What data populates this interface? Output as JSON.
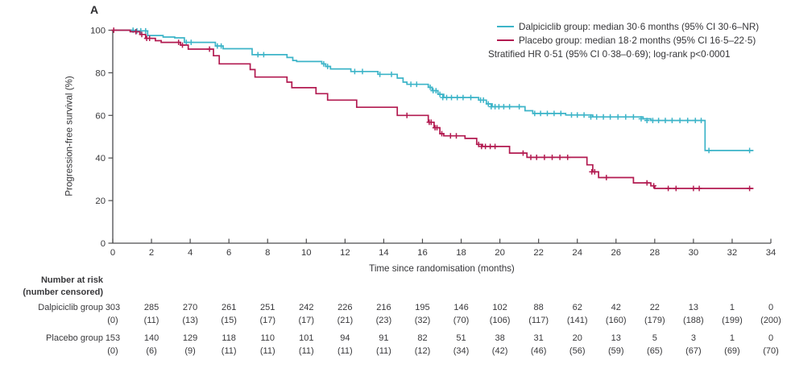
{
  "figure": {
    "panel_label": "A"
  },
  "chart_data": {
    "type": "line",
    "variant": "kaplan_meier_step",
    "xlabel": "Time since randomisation (months)",
    "ylabel": "Progression-free survival (%)",
    "xlim": [
      0,
      34
    ],
    "ylim": [
      0,
      100
    ],
    "x_ticks": [
      0,
      2,
      4,
      6,
      8,
      10,
      12,
      14,
      16,
      18,
      20,
      22,
      24,
      26,
      28,
      30,
      32,
      34
    ],
    "y_ticks": [
      0,
      20,
      40,
      60,
      80,
      100
    ],
    "grid": false,
    "legend_position": "top-right",
    "annotation": "Stratified HR 0·51 (95% CI 0·38–0·69); log-rank p<0·0001",
    "series": [
      {
        "name": "Dalpiciclib group",
        "legend_label": "Dalpiciclib group: median 30·6 months (95% CI 30·6–NR)",
        "median_months": 30.6,
        "color": "#3cb4c8",
        "points": [
          [
            0,
            100
          ],
          [
            1.0,
            99.7
          ],
          [
            1.8,
            97.5
          ],
          [
            2.6,
            96.8
          ],
          [
            3.2,
            96.4
          ],
          [
            3.7,
            94.3
          ],
          [
            5.3,
            92.6
          ],
          [
            5.7,
            91.3
          ],
          [
            7.2,
            88.5
          ],
          [
            9.0,
            87.2
          ],
          [
            9.3,
            85.8
          ],
          [
            9.5,
            85.3
          ],
          [
            10.8,
            84.2
          ],
          [
            11.0,
            83.0
          ],
          [
            11.25,
            81.8
          ],
          [
            12.3,
            80.6
          ],
          [
            13.7,
            79.3
          ],
          [
            14.7,
            77.5
          ],
          [
            15.0,
            75.6
          ],
          [
            15.2,
            74.6
          ],
          [
            16.3,
            73.2
          ],
          [
            16.5,
            71.6
          ],
          [
            16.8,
            69.9
          ],
          [
            17.1,
            68.4
          ],
          [
            18.9,
            67.2
          ],
          [
            19.3,
            65.4
          ],
          [
            19.6,
            64.1
          ],
          [
            21.3,
            62.2
          ],
          [
            21.7,
            60.9
          ],
          [
            23.4,
            60.2
          ],
          [
            24.8,
            59.3
          ],
          [
            27.4,
            58.4
          ],
          [
            27.8,
            57.6
          ],
          [
            30.6,
            43.5
          ],
          [
            33.1,
            43.5
          ]
        ],
        "censors": [
          [
            1.05,
            100
          ],
          [
            1.25,
            99.7
          ],
          [
            1.45,
            99.7
          ],
          [
            1.7,
            99.7
          ],
          [
            3.8,
            94.3
          ],
          [
            4.05,
            94.3
          ],
          [
            5.4,
            92.6
          ],
          [
            5.6,
            92.6
          ],
          [
            7.5,
            88.5
          ],
          [
            7.8,
            88.5
          ],
          [
            10.9,
            84.2
          ],
          [
            11.1,
            83.0
          ],
          [
            12.5,
            80.6
          ],
          [
            12.9,
            80.6
          ],
          [
            13.8,
            79.3
          ],
          [
            14.4,
            79.3
          ],
          [
            15.4,
            74.6
          ],
          [
            15.7,
            74.6
          ],
          [
            16.4,
            73.2
          ],
          [
            16.55,
            71.6
          ],
          [
            16.7,
            71.6
          ],
          [
            16.9,
            69.9
          ],
          [
            17.05,
            68.4
          ],
          [
            17.25,
            68.4
          ],
          [
            17.5,
            68.4
          ],
          [
            17.8,
            68.4
          ],
          [
            18.1,
            68.4
          ],
          [
            18.5,
            68.4
          ],
          [
            19.0,
            67.2
          ],
          [
            19.15,
            67.2
          ],
          [
            19.4,
            65.4
          ],
          [
            19.55,
            64.1
          ],
          [
            19.75,
            64.1
          ],
          [
            19.95,
            64.1
          ],
          [
            20.2,
            64.1
          ],
          [
            20.5,
            64.1
          ],
          [
            21.0,
            64.1
          ],
          [
            21.8,
            60.9
          ],
          [
            22.1,
            60.9
          ],
          [
            22.45,
            60.9
          ],
          [
            22.8,
            60.9
          ],
          [
            23.15,
            60.9
          ],
          [
            23.7,
            60.2
          ],
          [
            24.0,
            60.2
          ],
          [
            24.35,
            60.2
          ],
          [
            24.7,
            59.3
          ],
          [
            25.0,
            59.3
          ],
          [
            25.35,
            59.3
          ],
          [
            25.7,
            59.3
          ],
          [
            26.1,
            59.3
          ],
          [
            26.5,
            59.3
          ],
          [
            26.9,
            59.3
          ],
          [
            27.3,
            58.4
          ],
          [
            27.6,
            57.6
          ],
          [
            27.9,
            57.6
          ],
          [
            28.2,
            57.6
          ],
          [
            28.55,
            57.6
          ],
          [
            28.9,
            57.6
          ],
          [
            29.3,
            57.6
          ],
          [
            29.7,
            57.6
          ],
          [
            30.1,
            57.6
          ],
          [
            30.4,
            57.6
          ],
          [
            30.8,
            43.5
          ],
          [
            32.9,
            43.5
          ]
        ]
      },
      {
        "name": "Placebo group",
        "legend_label": "Placebo group: median 18·2 months (95% CI 16·5–22·5)",
        "median_months": 18.2,
        "color": "#b21a50",
        "points": [
          [
            0,
            100
          ],
          [
            0.9,
            99.3
          ],
          [
            1.4,
            98.0
          ],
          [
            1.7,
            96.2
          ],
          [
            2.2,
            95.1
          ],
          [
            2.5,
            94.3
          ],
          [
            3.5,
            93.0
          ],
          [
            3.9,
            91.1
          ],
          [
            5.2,
            88.0
          ],
          [
            5.5,
            84.2
          ],
          [
            7.1,
            81.5
          ],
          [
            7.35,
            78.0
          ],
          [
            9.0,
            75.6
          ],
          [
            9.25,
            73.0
          ],
          [
            10.5,
            70.2
          ],
          [
            11.1,
            67.2
          ],
          [
            12.6,
            63.8
          ],
          [
            14.7,
            60.0
          ],
          [
            16.3,
            56.8
          ],
          [
            16.6,
            54.2
          ],
          [
            16.9,
            51.4
          ],
          [
            17.1,
            50.4
          ],
          [
            18.2,
            49.2
          ],
          [
            18.8,
            46.4
          ],
          [
            19.1,
            45.4
          ],
          [
            20.5,
            42.3
          ],
          [
            21.4,
            40.3
          ],
          [
            24.5,
            36.8
          ],
          [
            24.8,
            33.5
          ],
          [
            25.1,
            30.8
          ],
          [
            26.9,
            28.3
          ],
          [
            27.8,
            26.9
          ],
          [
            28.0,
            25.7
          ],
          [
            33.1,
            25.7
          ]
        ],
        "censors": [
          [
            0.05,
            100
          ],
          [
            1.2,
            99.3
          ],
          [
            1.5,
            98.0
          ],
          [
            1.75,
            96.2
          ],
          [
            1.9,
            96.2
          ],
          [
            3.4,
            94.3
          ],
          [
            3.6,
            93.0
          ],
          [
            5.0,
            91.1
          ],
          [
            15.2,
            60.0
          ],
          [
            16.35,
            56.8
          ],
          [
            16.45,
            56.8
          ],
          [
            16.65,
            54.2
          ],
          [
            16.75,
            54.2
          ],
          [
            17.0,
            51.4
          ],
          [
            17.45,
            50.4
          ],
          [
            17.75,
            50.4
          ],
          [
            18.9,
            46.4
          ],
          [
            19.05,
            45.4
          ],
          [
            19.25,
            45.4
          ],
          [
            19.5,
            45.4
          ],
          [
            19.75,
            45.4
          ],
          [
            21.2,
            42.3
          ],
          [
            21.6,
            40.3
          ],
          [
            21.9,
            40.3
          ],
          [
            22.3,
            40.3
          ],
          [
            22.7,
            40.3
          ],
          [
            23.1,
            40.3
          ],
          [
            23.5,
            40.3
          ],
          [
            24.75,
            33.5
          ],
          [
            24.9,
            33.5
          ],
          [
            25.5,
            30.8
          ],
          [
            27.6,
            28.3
          ],
          [
            27.95,
            26.9
          ],
          [
            28.7,
            25.7
          ],
          [
            29.1,
            25.7
          ],
          [
            30.0,
            25.7
          ],
          [
            30.3,
            25.7
          ],
          [
            32.9,
            25.7
          ]
        ]
      }
    ]
  },
  "risk_table": {
    "header_line1": "Number at risk",
    "header_line2": "(number censored)",
    "time_points": [
      0,
      2,
      4,
      6,
      8,
      10,
      12,
      14,
      16,
      18,
      20,
      22,
      24,
      26,
      28,
      30,
      32,
      34
    ],
    "rows": [
      {
        "label": "Dalpiciclib group",
        "at_risk": [
          303,
          285,
          270,
          261,
          251,
          242,
          226,
          216,
          195,
          146,
          102,
          88,
          62,
          42,
          22,
          13,
          1,
          0
        ],
        "censored": [
          "(0)",
          "(11)",
          "(13)",
          "(15)",
          "(17)",
          "(17)",
          "(21)",
          "(23)",
          "(32)",
          "(70)",
          "(106)",
          "(117)",
          "(141)",
          "(160)",
          "(179)",
          "(188)",
          "(199)",
          "(200)"
        ]
      },
      {
        "label": "Placebo group",
        "at_risk": [
          153,
          140,
          129,
          118,
          110,
          101,
          94,
          91,
          82,
          51,
          38,
          31,
          20,
          13,
          5,
          3,
          1,
          0
        ],
        "censored": [
          "(0)",
          "(6)",
          "(9)",
          "(11)",
          "(11)",
          "(11)",
          "(11)",
          "(11)",
          "(12)",
          "(34)",
          "(42)",
          "(46)",
          "(56)",
          "(59)",
          "(65)",
          "(67)",
          "(69)",
          "(70)"
        ]
      }
    ]
  },
  "colors": {
    "axis": "#4c4c4e",
    "text": "#38383b"
  }
}
